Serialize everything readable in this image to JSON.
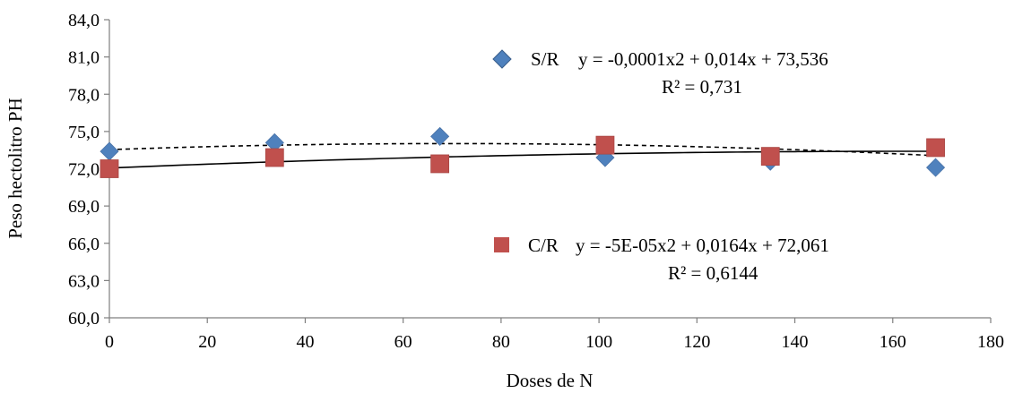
{
  "chart_data": {
    "type": "scatter",
    "xlabel": "Doses de N",
    "ylabel": "Peso hectolitro PH",
    "xlim": [
      0,
      180
    ],
    "ylim": [
      60,
      84
    ],
    "x_ticks": [
      "0",
      "20",
      "40",
      "60",
      "80",
      "100",
      "120",
      "140",
      "160",
      "180"
    ],
    "y_ticks": [
      "60,0",
      "63,0",
      "66,0",
      "69,0",
      "72,0",
      "75,0",
      "78,0",
      "81,0",
      "84,0"
    ],
    "grid": false,
    "series": [
      {
        "name": "S/R",
        "marker": "diamond",
        "color": "#4F81BD",
        "x": [
          0,
          33.75,
          67.5,
          101.25,
          135,
          168.75
        ],
        "y": [
          73.4,
          74.1,
          74.6,
          72.9,
          72.6,
          72.1
        ],
        "trendline": {
          "type": "polynomial",
          "style": "dashed",
          "coefficients": [
            -0.0001,
            0.014,
            73.536
          ],
          "equation": "y = -0,0001x2 + 0,014x + 73,536",
          "r2": "R² = 0,731"
        }
      },
      {
        "name": "C/R",
        "marker": "square",
        "color": "#C0504D",
        "x": [
          0,
          33.75,
          67.5,
          101.25,
          135,
          168.75
        ],
        "y": [
          72.0,
          72.9,
          72.4,
          73.9,
          73.0,
          73.7
        ],
        "trendline": {
          "type": "polynomial",
          "style": "solid",
          "coefficients": [
            -5e-05,
            0.0164,
            72.061
          ],
          "equation": "y = -5E-05x2 + 0,0164x + 72,061",
          "r2": "R² = 0,6144"
        }
      }
    ]
  }
}
